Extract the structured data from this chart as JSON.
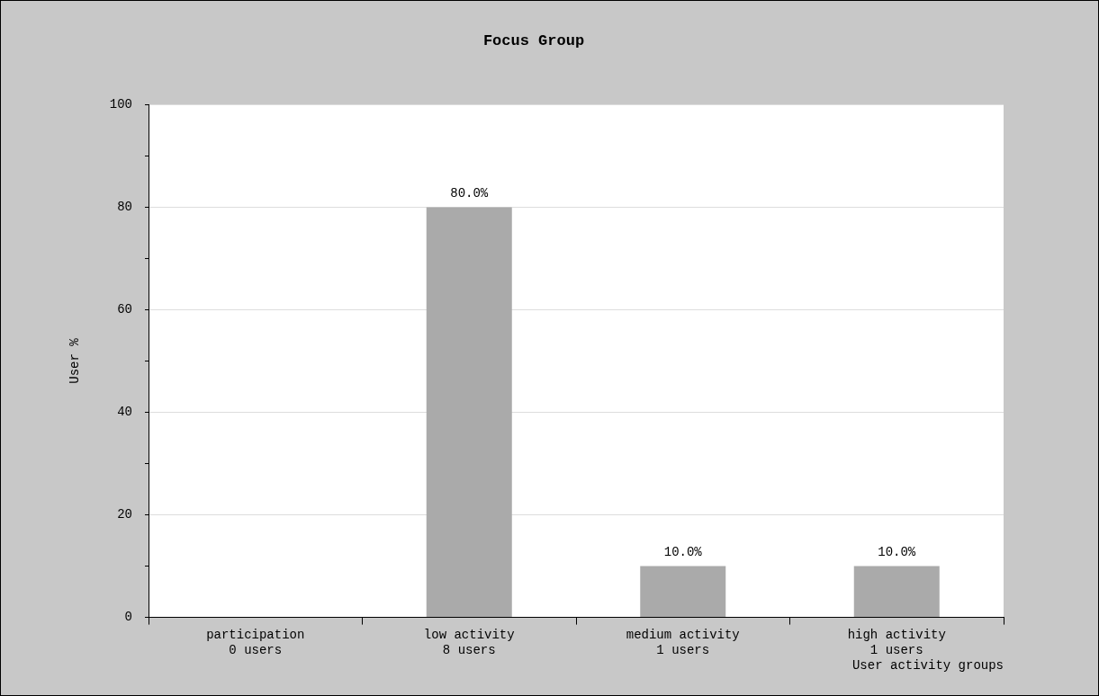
{
  "chart_data": {
    "type": "bar",
    "title": "Focus Group",
    "xlabel": "User activity groups",
    "ylabel": "User %",
    "categories": [
      "participation\n0 users",
      "low activity\n8 users",
      "medium activity\n1 users",
      "high activity\n1 users"
    ],
    "values": [
      0,
      80,
      10,
      10
    ],
    "color": "#aaaaaa",
    "value_labels": [
      null,
      "80.0%",
      "10.0%",
      "10.0%"
    ],
    "ylim": [
      0,
      100
    ],
    "yticks": [
      0,
      {
        "value": 10,
        "label": null
      },
      20,
      {
        "value": 30,
        "label": null
      },
      40,
      {
        "value": 50,
        "label": null
      },
      60,
      {
        "value": 70,
        "label": null
      },
      80,
      {
        "value": 90,
        "label": null
      },
      100
    ],
    "grid": "y",
    "legend": false
  }
}
